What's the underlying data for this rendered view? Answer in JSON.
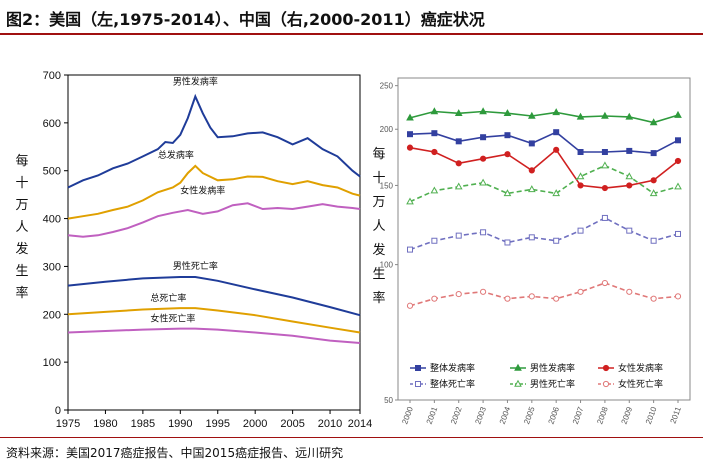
{
  "title": "图2：美国（左,1975-2014）、中国（右,2000-2011）癌症状况",
  "source": "资料来源：美国2017癌症报告、中国2015癌症报告、远川研究",
  "chart_data": [
    {
      "type": "line",
      "ylabel": "每十万人发生率",
      "xlim": [
        1975,
        2014
      ],
      "ylim": [
        0,
        700
      ],
      "x_ticks": [
        "1975",
        "1980",
        "1985",
        "1990",
        "1995",
        "2000",
        "2005",
        "2010",
        "2014"
      ],
      "y_ticks": [
        "0",
        "100",
        "200",
        "300",
        "400",
        "500",
        "600",
        "700"
      ],
      "grid": false,
      "series": [
        {
          "name": "男性发病率",
          "color": "#1f3c99",
          "x": [
            1975,
            1977,
            1979,
            1981,
            1983,
            1985,
            1987,
            1988,
            1989,
            1990,
            1991,
            1992,
            1993,
            1994,
            1995,
            1997,
            1999,
            2001,
            2003,
            2005,
            2007,
            2009,
            2011,
            2013,
            2014
          ],
          "values": [
            465,
            480,
            490,
            505,
            515,
            530,
            545,
            560,
            558,
            575,
            610,
            655,
            620,
            590,
            570,
            572,
            578,
            580,
            570,
            555,
            568,
            545,
            530,
            500,
            488
          ]
        },
        {
          "name": "总发病率",
          "color": "#e0a000",
          "x": [
            1975,
            1977,
            1979,
            1981,
            1983,
            1985,
            1987,
            1989,
            1990,
            1991,
            1992,
            1993,
            1995,
            1997,
            1999,
            2001,
            2003,
            2005,
            2007,
            2009,
            2011,
            2013,
            2014
          ],
          "values": [
            400,
            405,
            410,
            418,
            425,
            438,
            455,
            465,
            475,
            495,
            510,
            495,
            480,
            482,
            488,
            487,
            478,
            472,
            478,
            470,
            465,
            452,
            448
          ]
        },
        {
          "name": "女性发病率",
          "color": "#c060c0",
          "x": [
            1975,
            1977,
            1979,
            1981,
            1983,
            1985,
            1987,
            1989,
            1991,
            1993,
            1995,
            1997,
            1999,
            2001,
            2003,
            2005,
            2007,
            2009,
            2011,
            2013,
            2014
          ],
          "values": [
            365,
            362,
            365,
            372,
            380,
            392,
            405,
            412,
            418,
            410,
            415,
            428,
            432,
            420,
            422,
            420,
            425,
            430,
            425,
            422,
            420
          ]
        },
        {
          "name": "男性死亡率",
          "color": "#1f3c99",
          "x": [
            1975,
            1980,
            1985,
            1990,
            1992,
            1995,
            2000,
            2005,
            2010,
            2014
          ],
          "values": [
            260,
            268,
            275,
            278,
            278,
            270,
            252,
            235,
            215,
            198
          ]
        },
        {
          "name": "总死亡率",
          "color": "#e0a000",
          "x": [
            1975,
            1980,
            1985,
            1990,
            1992,
            1995,
            2000,
            2005,
            2010,
            2014
          ],
          "values": [
            200,
            205,
            210,
            213,
            213,
            208,
            198,
            185,
            172,
            162
          ]
        },
        {
          "name": "女性死亡率",
          "color": "#c060c0",
          "x": [
            1975,
            1980,
            1985,
            1990,
            1992,
            1995,
            2000,
            2005,
            2010,
            2014
          ],
          "values": [
            162,
            165,
            168,
            170,
            170,
            168,
            162,
            155,
            145,
            140
          ]
        }
      ]
    },
    {
      "type": "line",
      "ylabel": "每十万人发生率",
      "scale": "log",
      "ylim": [
        50,
        260
      ],
      "x": [
        "2000",
        "2001",
        "2002",
        "2003",
        "2004",
        "2005",
        "2006",
        "2007",
        "2008",
        "2009",
        "2010",
        "2011"
      ],
      "y_ticks": [
        "50",
        "100",
        "150",
        "200",
        "250"
      ],
      "grid": false,
      "legend_position": "bottom",
      "series": [
        {
          "name": "整体发病率",
          "color": "#3340a0",
          "style": "solid",
          "marker": "square",
          "values": [
            195,
            196,
            188,
            192,
            194,
            186,
            197,
            178,
            178,
            179,
            177,
            189
          ]
        },
        {
          "name": "男性发病率",
          "color": "#2e9a3c",
          "style": "solid",
          "marker": "triangle",
          "values": [
            212,
            219,
            217,
            219,
            217,
            214,
            218,
            213,
            214,
            213,
            207,
            215
          ]
        },
        {
          "name": "女性发病率",
          "color": "#d02020",
          "style": "solid",
          "marker": "circle",
          "values": [
            182,
            178,
            168,
            172,
            176,
            162,
            180,
            150,
            148,
            150,
            154,
            170
          ]
        },
        {
          "name": "整体死亡率",
          "color": "#7070c0",
          "style": "dashed",
          "marker": "square",
          "values": [
            108,
            113,
            116,
            118,
            112,
            115,
            113,
            119,
            127,
            119,
            113,
            117
          ]
        },
        {
          "name": "男性死亡率",
          "color": "#50b050",
          "style": "dashed",
          "marker": "triangle",
          "values": [
            138,
            146,
            149,
            152,
            144,
            147,
            144,
            157,
            166,
            157,
            144,
            149
          ]
        },
        {
          "name": "女性死亡率",
          "color": "#e07878",
          "style": "dashed",
          "marker": "circle",
          "values": [
            81,
            84,
            86,
            87,
            84,
            85,
            84,
            87,
            91,
            87,
            84,
            85
          ]
        }
      ]
    }
  ]
}
